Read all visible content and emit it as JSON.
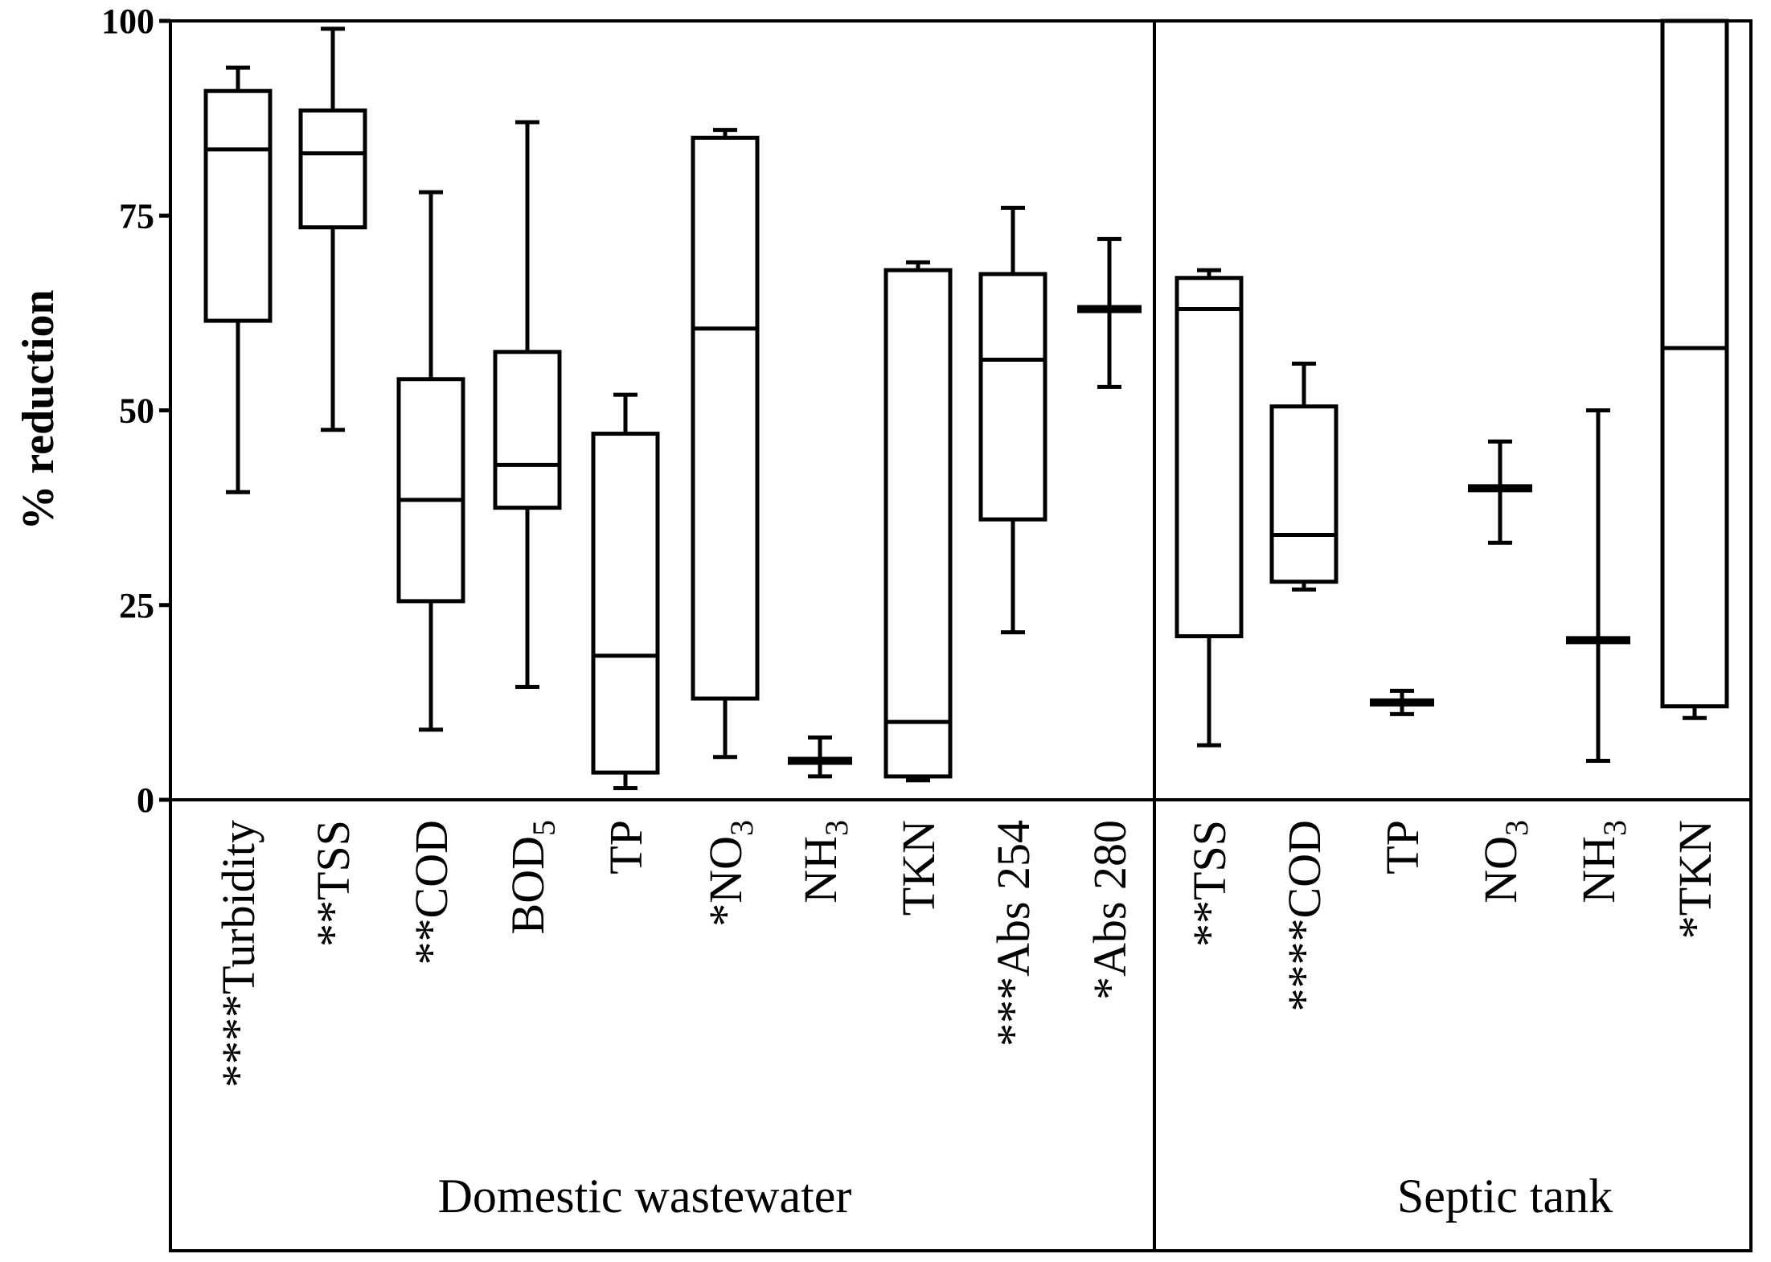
{
  "chart_data": {
    "type": "box",
    "ylabel": "% reduction",
    "ylim": [
      0,
      100
    ],
    "yticks": [
      "0",
      "25",
      "50",
      "75",
      "100"
    ],
    "groups": [
      {
        "name": "Domestic wastewater",
        "items": [
          {
            "label": "****Turbidity",
            "min": 39.5,
            "q1": 61.5,
            "median": 83.5,
            "q3": 91,
            "max": 94
          },
          {
            "label": "**TSS",
            "min": 47.5,
            "q1": 73.5,
            "median": 83,
            "q3": 88.5,
            "max": 99
          },
          {
            "label": "**COD",
            "min": 9,
            "q1": 25.5,
            "median": 38.5,
            "q3": 54,
            "max": 78
          },
          {
            "label": "BOD",
            "sub": "5",
            "min": 14.5,
            "q1": 37.5,
            "median": 43,
            "q3": 57.5,
            "max": 87
          },
          {
            "label": "TP",
            "min": 1.5,
            "q1": 3.5,
            "median": 18.5,
            "q3": 47,
            "max": 52
          },
          {
            "label": "*NO",
            "sub": "3",
            "min": 5.5,
            "q1": 13,
            "median": 60.5,
            "q3": 85,
            "max": 86
          },
          {
            "label": "NH",
            "sub": "3",
            "min": 3,
            "q1": 5,
            "median": 5,
            "q3": 5,
            "max": 8
          },
          {
            "label": "TKN",
            "min": 2.5,
            "q1": 3,
            "median": 10,
            "q3": 68,
            "max": 69
          },
          {
            "label": "***Abs 254",
            "min": 21.5,
            "q1": 36,
            "median": 56.5,
            "q3": 67.5,
            "max": 76
          },
          {
            "label": "*Abs 280",
            "min": 53,
            "q1": 63,
            "median": 63,
            "q3": 63,
            "max": 72
          }
        ]
      },
      {
        "name": "Septic tank",
        "items": [
          {
            "label": "**TSS",
            "min": 7,
            "q1": 21,
            "median": 63,
            "q3": 67,
            "max": 68
          },
          {
            "label": "****COD",
            "min": 27,
            "q1": 28,
            "median": 34,
            "q3": 50.5,
            "max": 56
          },
          {
            "label": "TP",
            "min": 11,
            "q1": 12.5,
            "median": 12.5,
            "q3": 12.5,
            "max": 14
          },
          {
            "label": "NO",
            "sub": "3",
            "min": 33,
            "q1": 40,
            "median": 40,
            "q3": 40,
            "max": 46
          },
          {
            "label": "NH",
            "sub": "3",
            "min": 5,
            "q1": 20.5,
            "median": 20.5,
            "q3": 20.5,
            "max": 50
          },
          {
            "label": "*TKN",
            "min": 10.5,
            "q1": 12,
            "median": 58,
            "q3": 100,
            "max": 100
          }
        ]
      }
    ]
  }
}
